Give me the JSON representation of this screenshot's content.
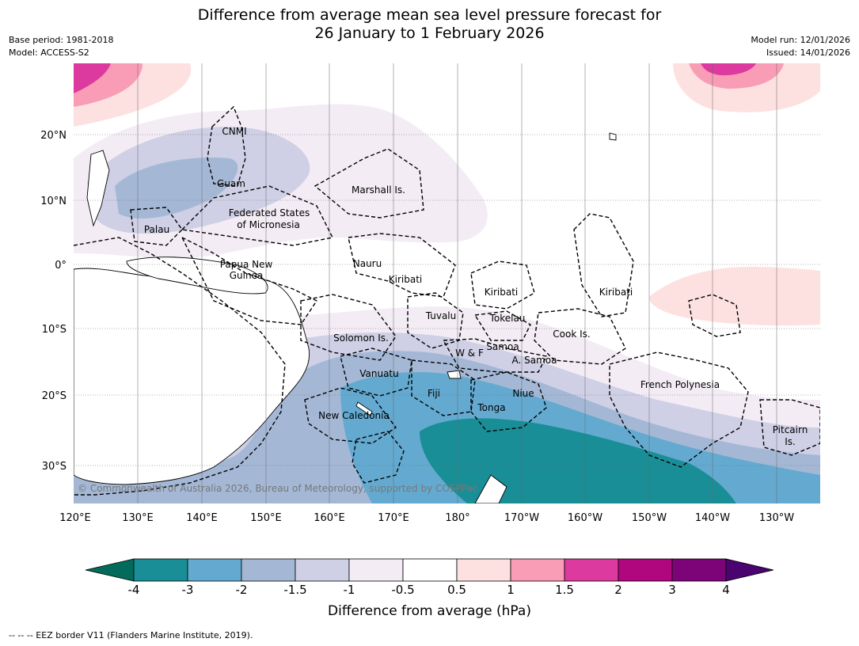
{
  "title_line1": "Difference from average mean sea level pressure forecast for",
  "title_line2": "26 January to 1 February 2026",
  "meta": {
    "base_period": "Base period: 1981-2018",
    "model": "Model: ACCESS-S2",
    "model_run": "Model run: 12/01/2026",
    "issued": "Issued: 14/01/2026"
  },
  "copyright": "© Commonwealth of Australia 2026, Bureau of Meteorology, supported by COSPPac",
  "lat_labels": [
    "20°N",
    "10°N",
    "0°",
    "10°S",
    "20°S",
    "30°S"
  ],
  "lon_labels": [
    "120°E",
    "130°E",
    "140°E",
    "150°E",
    "160°E",
    "170°E",
    "180°",
    "170°W",
    "160°W",
    "150°W",
    "140°W",
    "130°W"
  ],
  "places": [
    {
      "name": "CNMI"
    },
    {
      "name": "Guam"
    },
    {
      "name": "Marshall Is."
    },
    {
      "name": "Federated States"
    },
    {
      "name": "of Micronesia"
    },
    {
      "name": "Palau"
    },
    {
      "name": "Papua New"
    },
    {
      "name": "Guinea"
    },
    {
      "name": "Nauru"
    },
    {
      "name": "Kiribati"
    },
    {
      "name": "Kiribati"
    },
    {
      "name": "Kiribati"
    },
    {
      "name": "Tuvalu"
    },
    {
      "name": "Tokelau"
    },
    {
      "name": "Cook Is."
    },
    {
      "name": "Solomon Is."
    },
    {
      "name": "W & F"
    },
    {
      "name": "Samoa"
    },
    {
      "name": "A. Samoa"
    },
    {
      "name": "Vanuatu"
    },
    {
      "name": "Fiji"
    },
    {
      "name": "Niue"
    },
    {
      "name": "French Polynesia"
    },
    {
      "name": "Tonga"
    },
    {
      "name": "New Caledonia"
    },
    {
      "name": "Pitcairn"
    },
    {
      "name": "Is."
    }
  ],
  "colorbar": {
    "title": "Difference from average (hPa)",
    "ticks": [
      "-4",
      "-3",
      "-2",
      "-1.5",
      "-1",
      "-0.5",
      "0.5",
      "1",
      "1.5",
      "2",
      "3",
      "4"
    ],
    "colors": [
      "#1a8e96",
      "#64aad0",
      "#a4b8d6",
      "#cfd0e5",
      "#f3ecf5",
      "#ffffff",
      "#fde0e0",
      "#f99cb6",
      "#dc3a9e",
      "#b0067e",
      "#7d0379"
    ],
    "under_color": "#036b5c",
    "over_color": "#4a0370"
  },
  "footnote": "--  --  -- EEZ border V11 (Flanders Marine Institute, 2019)."
}
